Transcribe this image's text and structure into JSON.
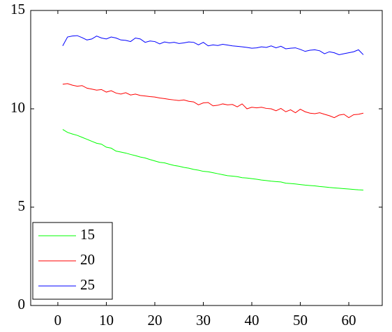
{
  "chart_data": {
    "type": "line",
    "x": [
      1,
      2,
      3,
      4,
      5,
      6,
      7,
      8,
      9,
      10,
      11,
      12,
      13,
      14,
      15,
      16,
      17,
      18,
      19,
      20,
      21,
      22,
      23,
      24,
      25,
      26,
      27,
      28,
      29,
      30,
      31,
      32,
      33,
      34,
      35,
      36,
      37,
      38,
      39,
      40,
      41,
      42,
      43,
      44,
      45,
      46,
      47,
      48,
      49,
      50,
      51,
      52,
      53,
      54,
      55,
      56,
      57,
      58,
      59,
      60,
      61,
      62,
      63
    ],
    "series": [
      {
        "name": "15",
        "color": "#00ff00",
        "values": [
          8.95,
          8.8,
          8.72,
          8.65,
          8.55,
          8.45,
          8.35,
          8.25,
          8.2,
          8.05,
          8.0,
          7.85,
          7.8,
          7.75,
          7.68,
          7.62,
          7.55,
          7.5,
          7.42,
          7.35,
          7.28,
          7.25,
          7.18,
          7.12,
          7.08,
          7.02,
          6.98,
          6.92,
          6.88,
          6.82,
          6.8,
          6.75,
          6.7,
          6.65,
          6.6,
          6.58,
          6.55,
          6.5,
          6.48,
          6.45,
          6.42,
          6.38,
          6.35,
          6.32,
          6.3,
          6.28,
          6.22,
          6.2,
          6.18,
          6.15,
          6.12,
          6.1,
          6.08,
          6.05,
          6.03,
          6.0,
          5.98,
          5.96,
          5.94,
          5.92,
          5.9,
          5.88,
          5.87
        ]
      },
      {
        "name": "20",
        "color": "#ff0000",
        "values": [
          11.25,
          11.28,
          11.2,
          11.15,
          11.18,
          11.05,
          11.0,
          10.95,
          10.98,
          10.85,
          10.92,
          10.8,
          10.75,
          10.82,
          10.7,
          10.75,
          10.68,
          10.65,
          10.62,
          10.6,
          10.55,
          10.52,
          10.48,
          10.45,
          10.42,
          10.45,
          10.38,
          10.35,
          10.2,
          10.3,
          10.32,
          10.15,
          10.18,
          10.25,
          10.2,
          10.22,
          10.1,
          10.25,
          10.0,
          10.08,
          10.05,
          10.08,
          10.02,
          10.0,
          9.9,
          10.02,
          9.85,
          9.95,
          9.8,
          9.98,
          9.85,
          9.78,
          9.75,
          9.8,
          9.72,
          9.65,
          9.55,
          9.68,
          9.72,
          9.55,
          9.7,
          9.72,
          9.78
        ]
      },
      {
        "name": "25",
        "color": "#0000ff",
        "values": [
          13.2,
          13.65,
          13.7,
          13.72,
          13.62,
          13.5,
          13.55,
          13.7,
          13.6,
          13.55,
          13.65,
          13.6,
          13.5,
          13.48,
          13.42,
          13.6,
          13.55,
          13.38,
          13.45,
          13.42,
          13.3,
          13.4,
          13.35,
          13.38,
          13.32,
          13.35,
          13.4,
          13.38,
          13.25,
          13.38,
          13.2,
          13.25,
          13.22,
          13.28,
          13.24,
          13.2,
          13.18,
          13.15,
          13.12,
          13.08,
          13.1,
          13.15,
          13.12,
          13.2,
          13.1,
          13.18,
          13.05,
          13.08,
          13.1,
          13.02,
          12.92,
          12.98,
          13.0,
          12.95,
          12.8,
          12.9,
          12.85,
          12.75,
          12.8,
          12.85,
          12.9,
          13.0,
          12.75
        ]
      }
    ],
    "xlim": [
      -5.6,
      66.9
    ],
    "xticks": [
      0,
      10,
      20,
      30,
      40,
      50,
      60
    ],
    "ylim": [
      0,
      15
    ],
    "yticks": [
      0,
      5,
      10,
      15
    ],
    "legend": "lower left"
  }
}
